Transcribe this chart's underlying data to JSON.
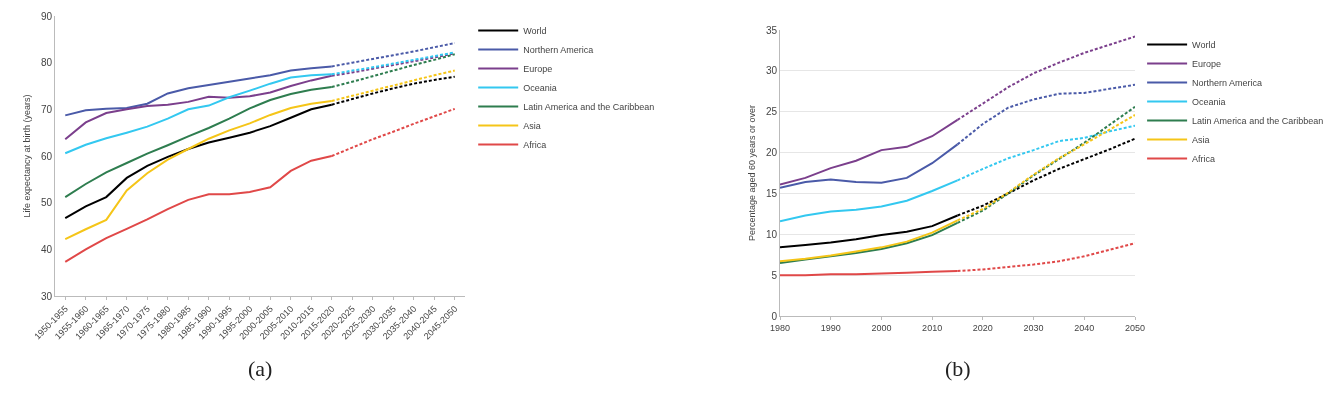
{
  "chart_data": [
    {
      "type": "line",
      "ylabel": "Life expectancy at birth (years)",
      "categories": [
        "1950-1955",
        "1955-1960",
        "1960-1965",
        "1965-1970",
        "1970-1975",
        "1975-1980",
        "1980-1985",
        "1985-1990",
        "1990-1995",
        "1995-2000",
        "2000-2005",
        "2005-2010",
        "2010-2015",
        "2015-2020",
        "2020-2025",
        "2025-2030",
        "2030-2035",
        "2035-2040",
        "2040-2045",
        "2045-2050"
      ],
      "ylim": [
        30,
        90
      ],
      "yticks": [
        30,
        40,
        50,
        60,
        70,
        80,
        90
      ],
      "legend": "right",
      "annotations": [
        "(a)"
      ],
      "series": [
        {
          "name": "World",
          "color": "#000000",
          "line_style": "solid",
          "values": [
            46.7,
            49.2,
            51.2,
            55.3,
            57.9,
            59.8,
            61.5,
            62.9,
            63.9,
            65.0,
            66.4,
            68.2,
            70.0,
            71.0,
            null,
            null,
            null,
            null,
            null,
            null
          ]
        },
        {
          "name": "Northern America",
          "color": "#4a5aa8",
          "line_style": "solid",
          "values": [
            68.7,
            69.8,
            70.1,
            70.3,
            71.2,
            73.4,
            74.5,
            75.2,
            75.9,
            76.6,
            77.3,
            78.3,
            78.8,
            79.2,
            null,
            null,
            null,
            null,
            null,
            null
          ]
        },
        {
          "name": "Europe",
          "color": "#7b3f8c",
          "line_style": "solid",
          "values": [
            63.6,
            67.2,
            69.2,
            70.0,
            70.7,
            71.0,
            71.6,
            72.7,
            72.5,
            72.8,
            73.6,
            75.0,
            76.2,
            77.2,
            null,
            null,
            null,
            null,
            null,
            null
          ]
        },
        {
          "name": "Oceania",
          "color": "#33c8f0",
          "line_style": "solid",
          "values": [
            60.6,
            62.4,
            63.8,
            65.0,
            66.3,
            68.0,
            70.0,
            70.8,
            72.6,
            74.0,
            75.5,
            76.8,
            77.3,
            77.5,
            null,
            null,
            null,
            null,
            null,
            null
          ]
        },
        {
          "name": "Latin America and the Caribbean",
          "color": "#2e7d4f",
          "line_style": "solid",
          "values": [
            51.2,
            54.0,
            56.5,
            58.5,
            60.5,
            62.3,
            64.2,
            66.0,
            68.0,
            70.2,
            72.0,
            73.3,
            74.2,
            74.8,
            null,
            null,
            null,
            null,
            null,
            null
          ]
        },
        {
          "name": "Asia",
          "color": "#f5c518",
          "line_style": "solid",
          "values": [
            42.2,
            44.3,
            46.3,
            52.6,
            56.3,
            59.2,
            61.5,
            63.7,
            65.5,
            67.0,
            68.8,
            70.3,
            71.2,
            71.8,
            null,
            null,
            null,
            null,
            null,
            null
          ]
        },
        {
          "name": "Africa",
          "color": "#e04848",
          "line_style": "solid",
          "values": [
            37.3,
            40.0,
            42.4,
            44.4,
            46.4,
            48.6,
            50.6,
            51.8,
            51.8,
            52.3,
            53.3,
            56.8,
            59.0,
            60.0,
            null,
            null,
            null,
            null,
            null,
            null
          ]
        },
        {
          "color": "#000000",
          "line_style": "dashed",
          "values": [
            null,
            null,
            null,
            null,
            null,
            null,
            null,
            null,
            null,
            null,
            null,
            null,
            null,
            71.0,
            72.2,
            73.4,
            74.5,
            75.5,
            76.3,
            77.0
          ]
        },
        {
          "color": "#4a5aa8",
          "line_style": "dashed",
          "values": [
            null,
            null,
            null,
            null,
            null,
            null,
            null,
            null,
            null,
            null,
            null,
            null,
            null,
            79.2,
            80.0,
            80.8,
            81.6,
            82.4,
            83.3,
            84.2
          ]
        },
        {
          "color": "#7b3f8c",
          "line_style": "dashed",
          "values": [
            null,
            null,
            null,
            null,
            null,
            null,
            null,
            null,
            null,
            null,
            null,
            null,
            null,
            77.2,
            77.9,
            78.7,
            79.5,
            80.3,
            81.1,
            82.0
          ]
        },
        {
          "color": "#33c8f0",
          "line_style": "dashed",
          "values": [
            null,
            null,
            null,
            null,
            null,
            null,
            null,
            null,
            null,
            null,
            null,
            null,
            null,
            77.5,
            78.3,
            79.0,
            79.8,
            80.6,
            81.4,
            82.2
          ]
        },
        {
          "color": "#2e7d4f",
          "line_style": "dashed",
          "values": [
            null,
            null,
            null,
            null,
            null,
            null,
            null,
            null,
            null,
            null,
            null,
            null,
            null,
            74.8,
            75.9,
            77.1,
            78.3,
            79.5,
            80.6,
            81.8
          ]
        },
        {
          "color": "#f5c518",
          "line_style": "dashed",
          "values": [
            null,
            null,
            null,
            null,
            null,
            null,
            null,
            null,
            null,
            null,
            null,
            null,
            null,
            71.8,
            72.9,
            74.0,
            75.1,
            76.2,
            77.3,
            78.3
          ]
        },
        {
          "color": "#e04848",
          "line_style": "dashed",
          "values": [
            null,
            null,
            null,
            null,
            null,
            null,
            null,
            null,
            null,
            null,
            null,
            null,
            null,
            60.0,
            61.8,
            63.6,
            65.2,
            66.9,
            68.5,
            70.1
          ]
        }
      ]
    },
    {
      "type": "line",
      "ylabel": "Percentage aged 60 years or over",
      "x": [
        1980,
        1985,
        1990,
        1995,
        2000,
        2005,
        2010,
        2015,
        2020,
        2025,
        2030,
        2035,
        2040,
        2045,
        2050
      ],
      "xlim": [
        1980,
        2050
      ],
      "xticks": [
        1980,
        1990,
        2000,
        2010,
        2020,
        2030,
        2040,
        2050
      ],
      "ylim": [
        0,
        35
      ],
      "yticks": [
        0,
        5,
        10,
        15,
        20,
        25,
        30,
        35
      ],
      "grid": "y",
      "legend": "right",
      "annotations": [
        "(b)"
      ],
      "series": [
        {
          "name": "World",
          "color": "#000000",
          "line_style": "solid",
          "values": [
            8.4,
            8.7,
            9.0,
            9.4,
            9.9,
            10.3,
            11.0,
            12.3,
            null,
            null,
            null,
            null,
            null,
            null,
            null
          ]
        },
        {
          "name": "Europe",
          "color": "#7b3f8c",
          "line_style": "solid",
          "values": [
            16.1,
            16.9,
            18.1,
            19.0,
            20.3,
            20.7,
            22.0,
            24.0,
            null,
            null,
            null,
            null,
            null,
            null,
            null
          ]
        },
        {
          "name": "Northern America",
          "color": "#4a5aa8",
          "line_style": "solid",
          "values": [
            15.7,
            16.4,
            16.7,
            16.4,
            16.3,
            16.9,
            18.7,
            21.0,
            null,
            null,
            null,
            null,
            null,
            null,
            null
          ]
        },
        {
          "name": "Oceania",
          "color": "#33c8f0",
          "line_style": "solid",
          "values": [
            11.6,
            12.3,
            12.8,
            13.0,
            13.4,
            14.1,
            15.3,
            16.6,
            null,
            null,
            null,
            null,
            null,
            null,
            null
          ]
        },
        {
          "name": "Latin America and the Caribbean",
          "color": "#2e7d4f",
          "line_style": "solid",
          "values": [
            6.5,
            6.9,
            7.3,
            7.7,
            8.2,
            8.9,
            9.9,
            11.4,
            null,
            null,
            null,
            null,
            null,
            null,
            null
          ]
        },
        {
          "name": "Asia",
          "color": "#f5c518",
          "line_style": "solid",
          "values": [
            6.7,
            7.0,
            7.4,
            7.9,
            8.4,
            9.1,
            10.2,
            11.7,
            null,
            null,
            null,
            null,
            null,
            null,
            null
          ]
        },
        {
          "name": "Africa",
          "color": "#e04848",
          "line_style": "solid",
          "values": [
            5.0,
            5.0,
            5.1,
            5.1,
            5.2,
            5.3,
            5.4,
            5.5,
            null,
            null,
            null,
            null,
            null,
            null,
            null
          ]
        },
        {
          "color": "#000000",
          "line_style": "dashed",
          "values": [
            null,
            null,
            null,
            null,
            null,
            null,
            null,
            12.3,
            13.5,
            15.0,
            16.6,
            18.0,
            19.2,
            20.4,
            21.7
          ]
        },
        {
          "color": "#7b3f8c",
          "line_style": "dashed",
          "values": [
            null,
            null,
            null,
            null,
            null,
            null,
            null,
            24.0,
            26.0,
            28.0,
            29.7,
            31.0,
            32.2,
            33.2,
            34.2
          ]
        },
        {
          "color": "#4a5aa8",
          "line_style": "dashed",
          "values": [
            null,
            null,
            null,
            null,
            null,
            null,
            null,
            21.0,
            23.5,
            25.5,
            26.5,
            27.2,
            27.3,
            27.8,
            28.3
          ]
        },
        {
          "color": "#33c8f0",
          "line_style": "dashed",
          "values": [
            null,
            null,
            null,
            null,
            null,
            null,
            null,
            16.6,
            18.0,
            19.3,
            20.3,
            21.4,
            21.8,
            22.6,
            23.3
          ]
        },
        {
          "color": "#2e7d4f",
          "line_style": "dashed",
          "values": [
            null,
            null,
            null,
            null,
            null,
            null,
            null,
            11.4,
            12.9,
            15.0,
            17.2,
            19.2,
            21.2,
            23.4,
            25.6
          ]
        },
        {
          "color": "#f5c518",
          "line_style": "dashed",
          "values": [
            null,
            null,
            null,
            null,
            null,
            null,
            null,
            11.7,
            13.1,
            15.1,
            17.3,
            19.3,
            21.0,
            22.8,
            24.6
          ]
        },
        {
          "color": "#e04848",
          "line_style": "dashed",
          "values": [
            null,
            null,
            null,
            null,
            null,
            null,
            null,
            5.5,
            5.7,
            6.0,
            6.3,
            6.7,
            7.3,
            8.1,
            8.9
          ]
        }
      ]
    }
  ]
}
